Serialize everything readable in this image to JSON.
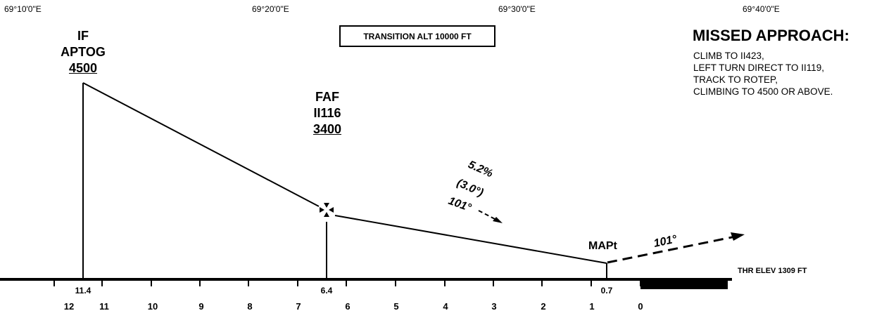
{
  "longitudes": [
    "69°10'0\"E",
    "69°20'0\"E",
    "69°30'0\"E",
    "69°40'0\"E"
  ],
  "transition_altitude": "TRANSITION  ALT 10000 FT",
  "missed_approach": {
    "title": "MISSED APPROACH:",
    "lines": [
      "CLIMB TO II423,",
      "LEFT TURN DIRECT TO II119,",
      "TRACK TO ROTEP,",
      "CLIMBING TO 4500 OR ABOVE."
    ]
  },
  "fixes": {
    "if": {
      "role": "IF",
      "name": "APTOG",
      "altitude": "4500",
      "distance": "11.4"
    },
    "faf": {
      "role": "FAF",
      "name": "II116",
      "altitude": "3400",
      "distance": "6.4"
    },
    "mapt": {
      "role": "MAPt",
      "distance": "0.7"
    }
  },
  "descent": {
    "gradient": "5.2%",
    "angle": "(3.0°)",
    "track": "101°"
  },
  "missed_track": "101°",
  "threshold_elevation": "THR ELEV 1309 FT",
  "distance_scale": [
    "12",
    "11",
    "10",
    "9",
    "8",
    "7",
    "6",
    "5",
    "4",
    "3",
    "2",
    "1",
    "0"
  ]
}
